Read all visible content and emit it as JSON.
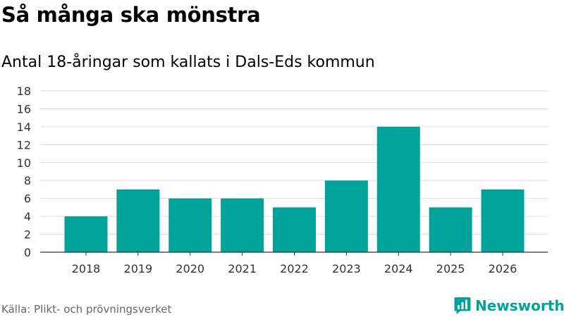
{
  "header": {
    "title": "Så många ska mönstra",
    "subtitle": "Antal 18-åringar som kallats i Dals-Eds kommun"
  },
  "footer": {
    "source": "Källa: Plikt- och prövningsverket",
    "brand": "Newsworthy"
  },
  "colors": {
    "bar": "#00A39A",
    "brand": "#00A39A",
    "grid": "#dddddd",
    "axis": "#333333",
    "text": "#000000",
    "muted": "#666666"
  },
  "icons": {
    "brand_logo": "newsworthy-logo-icon"
  },
  "chart_data": {
    "type": "bar",
    "categories": [
      "2018",
      "2019",
      "2020",
      "2021",
      "2022",
      "2023",
      "2024",
      "2025",
      "2026"
    ],
    "values": [
      4,
      7,
      6,
      6,
      5,
      8,
      14,
      5,
      7
    ],
    "title": "Så många ska mönstra",
    "subtitle": "Antal 18-åringar som kallats i Dals-Eds kommun",
    "xlabel": "",
    "ylabel": "",
    "ylim": [
      0,
      18
    ],
    "yticks": [
      0,
      2,
      4,
      6,
      8,
      10,
      12,
      14,
      16,
      18
    ],
    "grid": true,
    "legend": "none"
  }
}
